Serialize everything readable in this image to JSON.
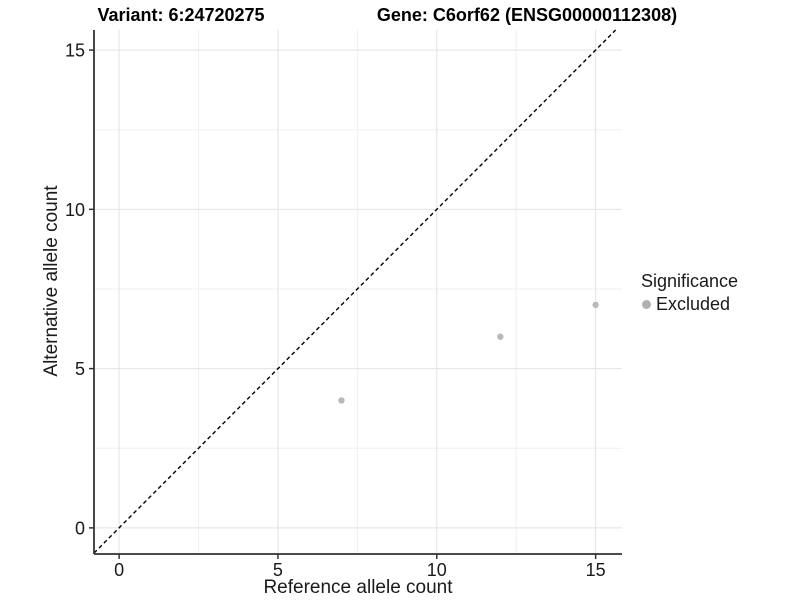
{
  "chart_data": {
    "type": "scatter",
    "title_left": "Variant: 6:24720275",
    "title_right": "Gene: C6orf62 (ENSG00000112308)",
    "xlabel": "Reference allele count",
    "ylabel": "Alternative allele count",
    "x_ticks": [
      0,
      5,
      10,
      15
    ],
    "y_ticks": [
      0,
      5,
      10,
      15
    ],
    "x_minor_ticks": [
      2.5,
      7.5,
      12.5
    ],
    "y_minor_ticks": [
      2.5,
      7.5,
      12.5
    ],
    "xlim": [
      -0.79,
      15.83
    ],
    "ylim": [
      -0.82,
      15.63
    ],
    "grid": true,
    "identity_line": {
      "style": "dashed",
      "slope": 1,
      "intercept": 0
    },
    "series": [
      {
        "name": "Excluded",
        "points": [
          {
            "x": 7,
            "y": 4
          },
          {
            "x": 12,
            "y": 6
          },
          {
            "x": 15,
            "y": 7
          }
        ]
      }
    ],
    "legend": {
      "position": "right",
      "title": "Significance",
      "items": [
        {
          "label": "Excluded",
          "color": "#b0b0b0"
        }
      ]
    },
    "colors": {
      "point": "#b9b9b9",
      "grid_major": "#e3e3e3",
      "grid_minor": "#f0f0f0",
      "axis": "#333333",
      "identity_line": "#000000",
      "text": "#1a1a1a",
      "background": "#ffffff"
    }
  }
}
